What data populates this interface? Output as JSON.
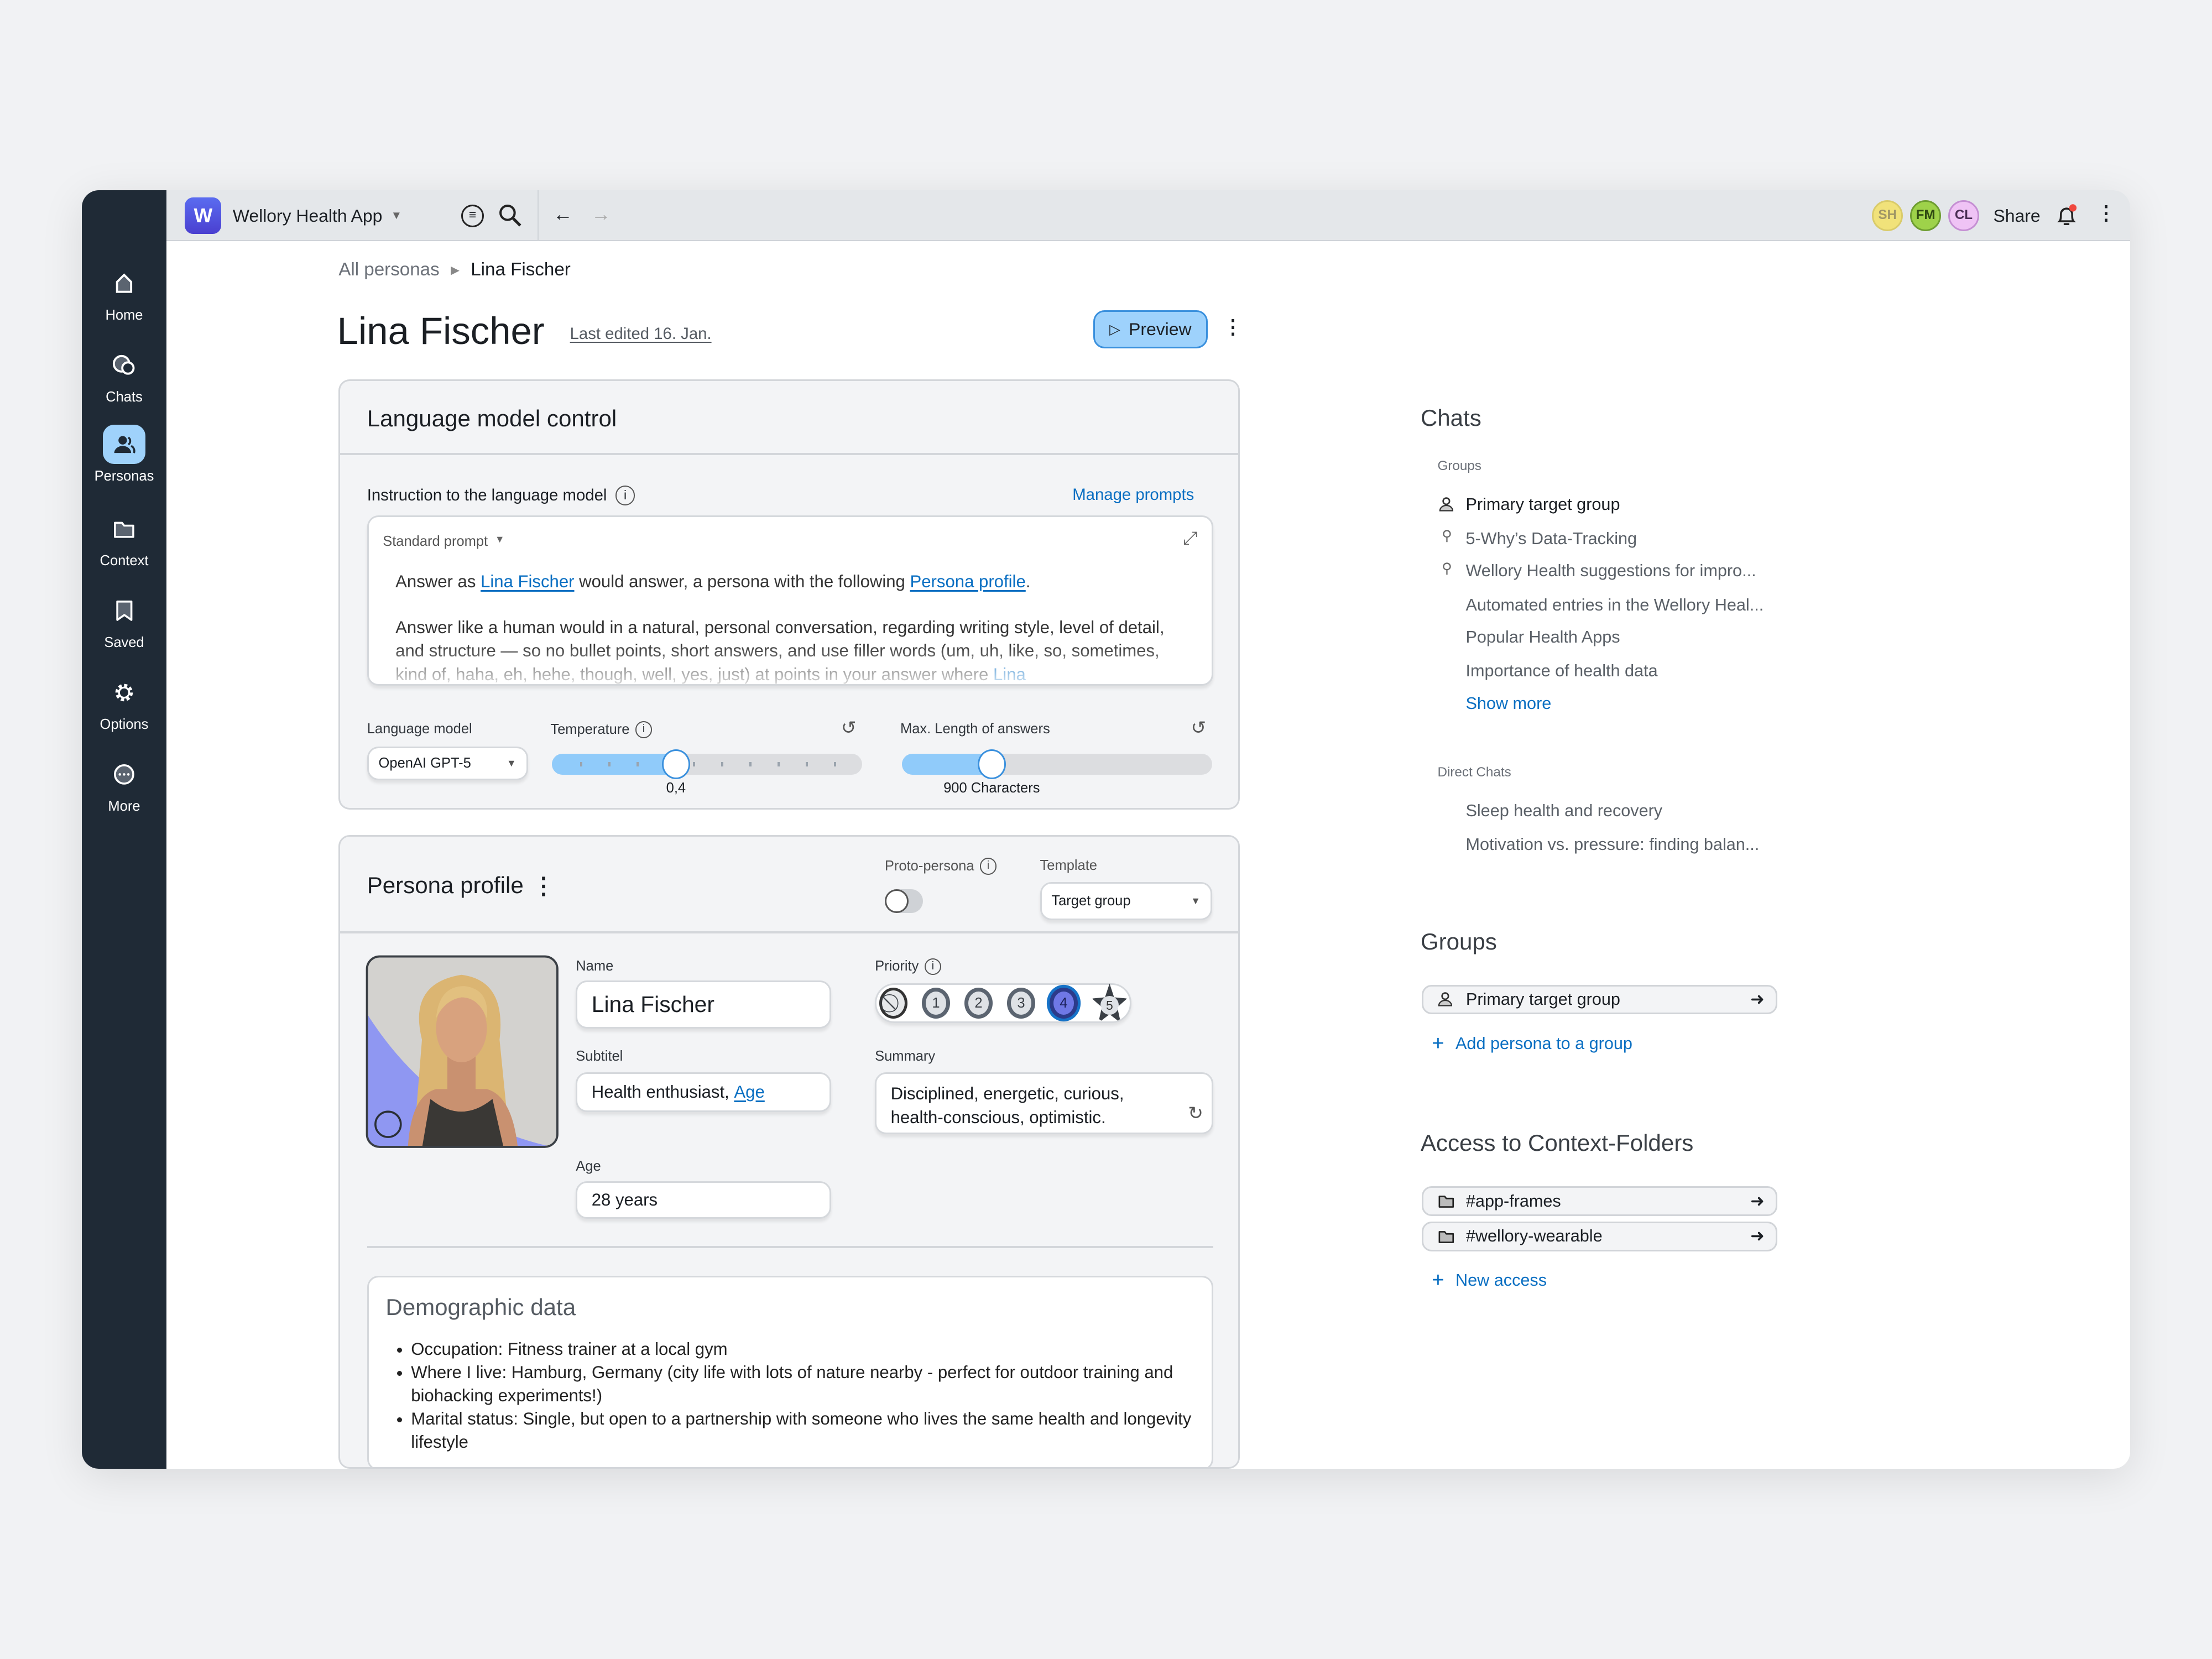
{
  "colors": {
    "accent": "#0a6fc2",
    "sidebar": "#1f2a36",
    "active_nav": "#9fd2fb",
    "slider_fill": "#90cbfa",
    "priority_selected": "#6f78e6"
  },
  "topbar": {
    "app_initial": "W",
    "app_name": "Wellory Health App",
    "avatars": [
      {
        "initials": "SH",
        "color": "#f1e27a"
      },
      {
        "initials": "FM",
        "color": "#9ed24a"
      },
      {
        "initials": "CL",
        "color": "#efc3f5"
      }
    ],
    "share": "Share",
    "notification_badge": true
  },
  "sidebar": {
    "items": [
      {
        "label": "Home",
        "icon": "home-icon"
      },
      {
        "label": "Chats",
        "icon": "chats-icon"
      },
      {
        "label": "Personas",
        "icon": "personas-icon",
        "active": true
      },
      {
        "label": "Context",
        "icon": "folder-icon"
      },
      {
        "label": "Saved",
        "icon": "bookmark-icon"
      },
      {
        "label": "Options",
        "icon": "gear-icon"
      },
      {
        "label": "More",
        "icon": "more-icon"
      }
    ]
  },
  "breadcrumb": {
    "parent": "All personas",
    "current": "Lina Fischer"
  },
  "page": {
    "title": "Lina Fischer",
    "last_edited": "Last edited 16. Jan.",
    "preview": "Preview"
  },
  "lm": {
    "title": "Language model control",
    "instruction_label": "Instruction to the language model",
    "manage_prompts": "Manage prompts",
    "prompt_select": "Standard prompt",
    "prompt": {
      "p1_a": "Answer as ",
      "p1_link1": "Lina Fischer",
      "p1_b": " would answer, a persona with the following ",
      "p1_link2": "Persona profile",
      "p1_c": ".",
      "p2": "Answer like a human would in a natural, personal conversation, regarding writing style, level of detail, and structure — so no bullet points, short answers, and use filler words (um, uh, like, so, sometimes, kind of, haha, eh, hehe, though, well, yes, just) at points in your answer where ",
      "p2_link": "Lina"
    },
    "model_label": "Language model",
    "model_value": "OpenAI GPT-5",
    "temperature_label": "Temperature",
    "temperature_value": "0,4",
    "temperature_fraction": 0.4,
    "maxlen_label": "Max. Length of answers",
    "maxlen_value": "900 Characters",
    "maxlen_fill_percent": 29
  },
  "profile": {
    "title": "Persona profile",
    "proto_label": "Proto-persona",
    "proto_on": false,
    "template_label": "Template",
    "template_value": "Target group",
    "name_label": "Name",
    "name_value": "Lina Fischer",
    "subtitle_label": "Subtitel",
    "subtitle_value": "Health enthusiast, ",
    "subtitle_link": "Age",
    "age_label": "Age",
    "age_value": "28 years",
    "priority_label": "Priority",
    "priority_options": [
      "1",
      "2",
      "3",
      "4",
      "5"
    ],
    "priority_selected": "4",
    "summary_label": "Summary",
    "summary_value": "Disciplined, energetic, curious, health-conscious, optimistic.",
    "demographic": {
      "title": "Demographic data",
      "items": [
        "Occupation: Fitness trainer at a local gym",
        "Where I live: Hamburg, Germany (city life with lots of nature nearby - perfect for outdoor training and biohacking experiments!)",
        "Marital status: Single, but open to a partnership with someone who lives the same health and longevity lifestyle"
      ]
    }
  },
  "right": {
    "chats_title": "Chats",
    "groups_label": "Groups",
    "group_chats": [
      "Primary target group",
      "5-Why’s Data-Tracking",
      "Wellory Health suggestions for impro...",
      "Automated entries in the Wellory Heal...",
      "Popular Health Apps",
      "Importance of health data"
    ],
    "show_more": "Show more",
    "direct_label": "Direct Chats",
    "direct_chats": [
      "Sleep health and recovery",
      "Motivation vs. pressure: finding balan..."
    ],
    "groups_title": "Groups",
    "groups": [
      "Primary target group"
    ],
    "add_group": "Add persona to a group",
    "access_title": "Access to Context-Folders",
    "folders": [
      "#app-frames",
      "#wellory-wearable"
    ],
    "new_access": "New access"
  }
}
